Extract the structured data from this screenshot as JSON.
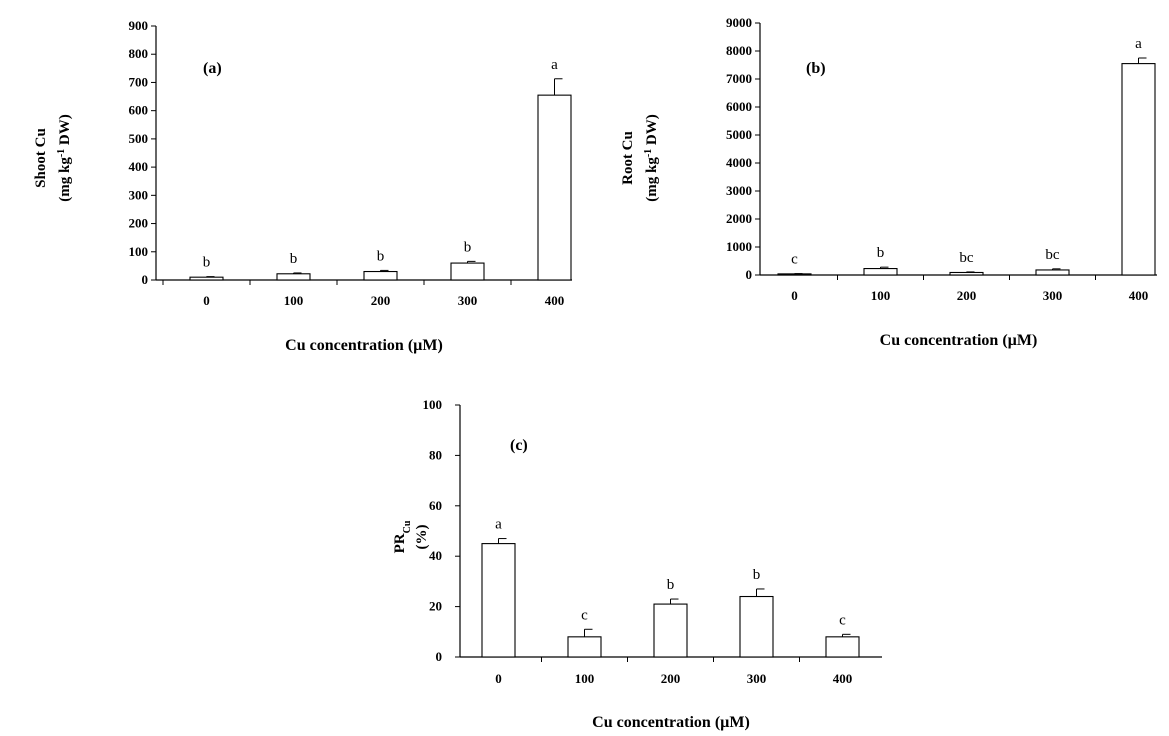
{
  "chart_data": [
    {
      "type": "bar",
      "panel_label": "(a)",
      "categories": [
        "0",
        "100",
        "200",
        "300",
        "400"
      ],
      "values": [
        10,
        22,
        30,
        60,
        655
      ],
      "errors": [
        2,
        3,
        4,
        6,
        58
      ],
      "letters": [
        "b",
        "b",
        "b",
        "b",
        "a"
      ],
      "xlabel": "Cu concentration (µM)",
      "ylabel_lines": [
        "Shoot Cu",
        "(mg kg",
        "-1",
        " DW)"
      ],
      "ylim": [
        0,
        900
      ],
      "yticks": [
        "0",
        "100",
        "200",
        "300",
        "400",
        "500",
        "600",
        "700",
        "800",
        "900"
      ],
      "grid": false
    },
    {
      "type": "bar",
      "panel_label": "(b)",
      "categories": [
        "0",
        "100",
        "200",
        "300",
        "400"
      ],
      "values": [
        40,
        230,
        90,
        180,
        7550
      ],
      "errors": [
        10,
        50,
        20,
        40,
        200
      ],
      "letters": [
        "c",
        "b",
        "bc",
        "bc",
        "a"
      ],
      "xlabel": "Cu concentration (µM)",
      "ylabel_lines": [
        "Root Cu",
        "(mg kg",
        "-1",
        " DW)"
      ],
      "ylim": [
        0,
        9000
      ],
      "yticks": [
        "0",
        "1000",
        "2000",
        "3000",
        "4000",
        "5000",
        "6000",
        "7000",
        "8000",
        "9000"
      ],
      "grid": false
    },
    {
      "type": "bar",
      "panel_label": "(c)",
      "categories": [
        "0",
        "100",
        "200",
        "300",
        "400"
      ],
      "values": [
        45,
        8,
        21,
        24,
        8
      ],
      "errors": [
        2,
        3,
        2,
        3,
        1
      ],
      "letters": [
        "a",
        "c",
        "b",
        "b",
        "c"
      ],
      "xlabel": "Cu concentration (µM)",
      "ylabel_lines": [
        "PR",
        "Cu",
        "(%)"
      ],
      "ylim": [
        0,
        100
      ],
      "yticks": [
        "0",
        "20",
        "40",
        "60",
        "80",
        "100"
      ],
      "grid": false
    }
  ]
}
